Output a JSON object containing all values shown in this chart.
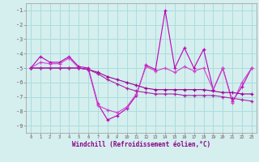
{
  "background_color": "#d5eeee",
  "grid_color": "#aadddd",
  "line_color1": "#bb00bb",
  "line_color2": "#cc44cc",
  "line_color3": "#990099",
  "line_color4": "#aa22aa",
  "x": [
    0,
    1,
    2,
    3,
    4,
    5,
    6,
    7,
    8,
    9,
    10,
    11,
    12,
    13,
    14,
    15,
    16,
    17,
    18,
    19,
    20,
    21,
    22,
    23
  ],
  "series1": [
    -5.0,
    -4.2,
    -4.6,
    -4.6,
    -4.2,
    -4.9,
    -5.0,
    -7.5,
    -8.6,
    -8.3,
    -7.8,
    -6.9,
    -4.8,
    -5.1,
    -1.0,
    -5.0,
    -3.6,
    -5.0,
    -3.7,
    -6.5,
    -5.0,
    -7.3,
    -6.3,
    -5.0
  ],
  "series2": [
    -5.0,
    -4.6,
    -4.7,
    -4.7,
    -4.3,
    -5.0,
    -5.1,
    -7.6,
    -7.9,
    -8.1,
    -7.7,
    -6.8,
    -4.9,
    -5.2,
    -5.0,
    -5.3,
    -4.9,
    -5.2,
    -5.0,
    -6.5,
    -5.0,
    -7.4,
    -6.0,
    -5.0
  ],
  "series3": [
    -5.0,
    -5.0,
    -5.0,
    -5.0,
    -5.0,
    -5.0,
    -5.1,
    -5.3,
    -5.6,
    -5.8,
    -6.0,
    -6.2,
    -6.4,
    -6.5,
    -6.5,
    -6.5,
    -6.5,
    -6.5,
    -6.5,
    -6.6,
    -6.7,
    -6.7,
    -6.8,
    -6.8
  ],
  "series4": [
    -5.0,
    -5.0,
    -5.0,
    -5.0,
    -5.0,
    -5.0,
    -5.1,
    -5.4,
    -5.8,
    -6.1,
    -6.4,
    -6.6,
    -6.7,
    -6.8,
    -6.8,
    -6.8,
    -6.9,
    -6.9,
    -6.9,
    -6.9,
    -7.0,
    -7.1,
    -7.2,
    -7.3
  ],
  "xlabel": "Windchill (Refroidissement éolien,°C)",
  "xtick_labels": [
    "0",
    "1",
    "2",
    "3",
    "4",
    "5",
    "6",
    "7",
    "8",
    "9",
    "10",
    "11",
    "12",
    "13",
    "14",
    "15",
    "16",
    "17",
    "18",
    "19",
    "20",
    "21",
    "22",
    "23"
  ],
  "xticks": [
    0,
    1,
    2,
    3,
    4,
    5,
    6,
    7,
    8,
    9,
    10,
    11,
    12,
    13,
    14,
    15,
    16,
    17,
    18,
    19,
    20,
    21,
    22,
    23
  ],
  "yticks": [
    -1,
    -2,
    -3,
    -4,
    -5,
    -6,
    -7,
    -8,
    -9
  ],
  "xlim": [
    -0.5,
    23.5
  ],
  "ylim": [
    -9.5,
    -0.5
  ]
}
